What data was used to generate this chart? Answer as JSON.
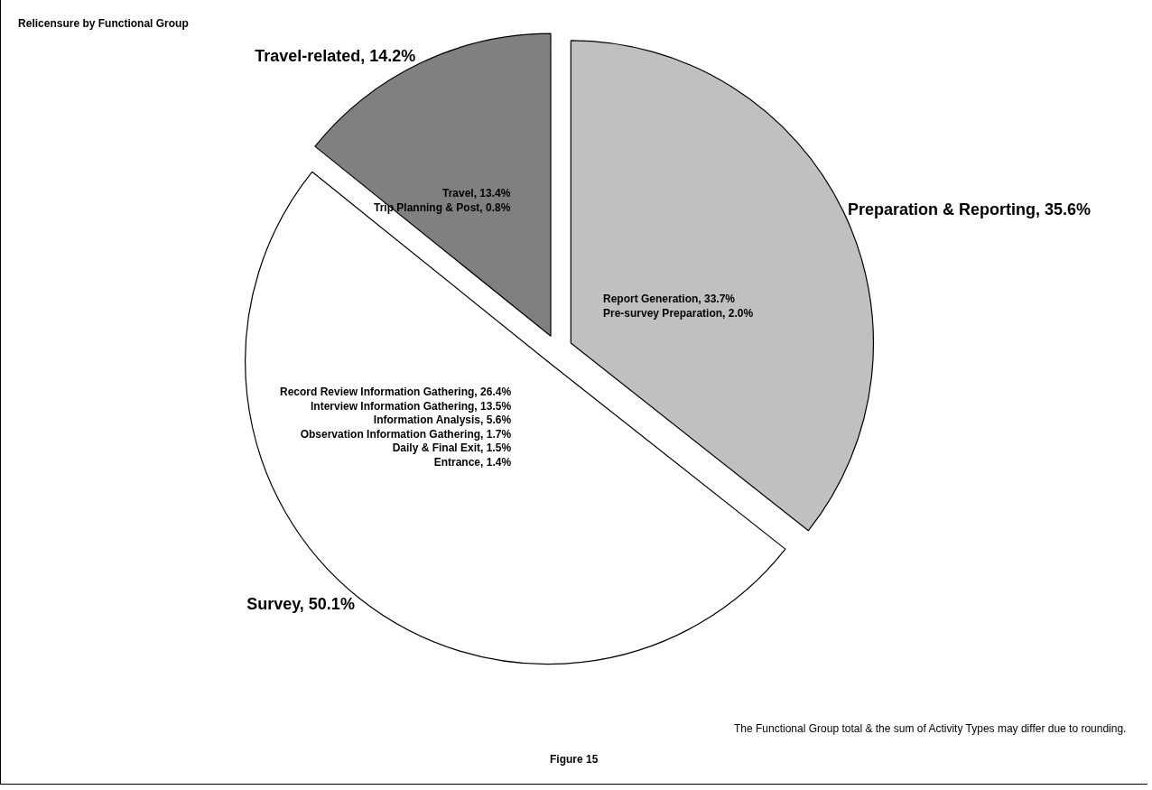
{
  "chart_data": {
    "type": "pie",
    "title": "Relicensure by Functional Group",
    "categories": [
      "Preparation & Reporting",
      "Survey",
      "Travel-related"
    ],
    "values": [
      35.6,
      50.1,
      14.2
    ],
    "value_labels": [
      "35.6%",
      "50.1%",
      "14.2%"
    ],
    "colors": [
      "#c0c0c0",
      "#ffffff",
      "#808080"
    ],
    "legend": false,
    "annotations": [
      "Report Generation, 33.7%\nPre-survey Preparation, 2.0%",
      "Record Review Information Gathering, 26.4%\nInterview Information Gathering, 13.5%\nInformation Analysis, 5.6%\nObservation Information Gathering, 1.7%\nDaily & Final Exit, 1.5%\nEntrance, 1.4%",
      "Travel, 13.4%\nTrip Planning & Post, 0.8%",
      "Figure 15",
      "The Functional Group total & the sum of Activity Types may differ due to rounding."
    ]
  }
}
